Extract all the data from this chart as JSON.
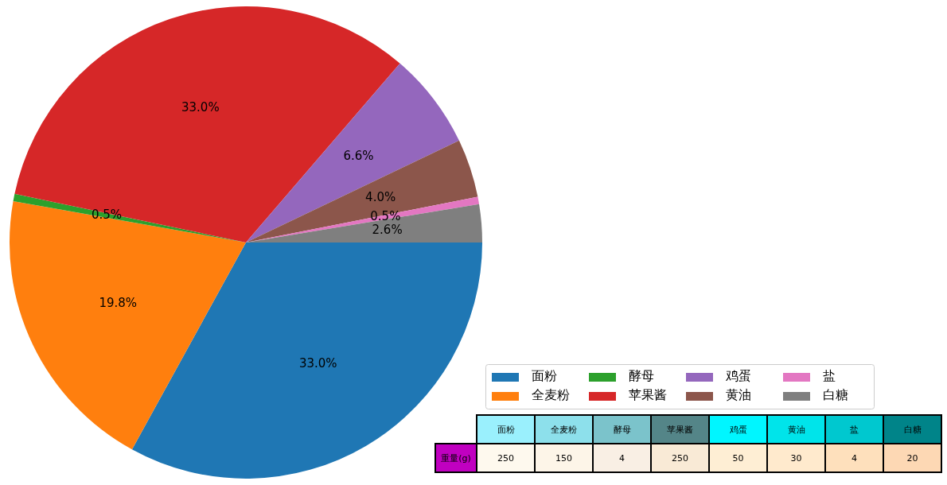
{
  "chart_data": [
    {
      "type": "pie",
      "categories": [
        "面粉",
        "全麦粉",
        "酵母",
        "苹果酱",
        "鸡蛋",
        "黄油",
        "盐",
        "白糖"
      ],
      "values": [
        33.0,
        19.8,
        0.5,
        33.0,
        6.6,
        4.0,
        0.5,
        2.6
      ],
      "colors": [
        "#1f77b4",
        "#ff7f0e",
        "#2ca02c",
        "#d62728",
        "#9467bd",
        "#8c564b",
        "#e377c2",
        "#7f7f7f"
      ],
      "value_labels": [
        "33.0%",
        "19.8%",
        "0.5%",
        "33.0%",
        "6.6%",
        "4.0%",
        "0.5%",
        "2.6%"
      ],
      "legend": "bottom right"
    },
    {
      "type": "other",
      "categories": [
        "面粉",
        "全麦粉",
        "酵母",
        "苹果酱",
        "鸡蛋",
        "黄油",
        "盐",
        "白糖"
      ],
      "ylabel": "重量(g)",
      "values": [
        250,
        150,
        4,
        250,
        50,
        30,
        4,
        20
      ],
      "data_labels": true
    }
  ]
}
